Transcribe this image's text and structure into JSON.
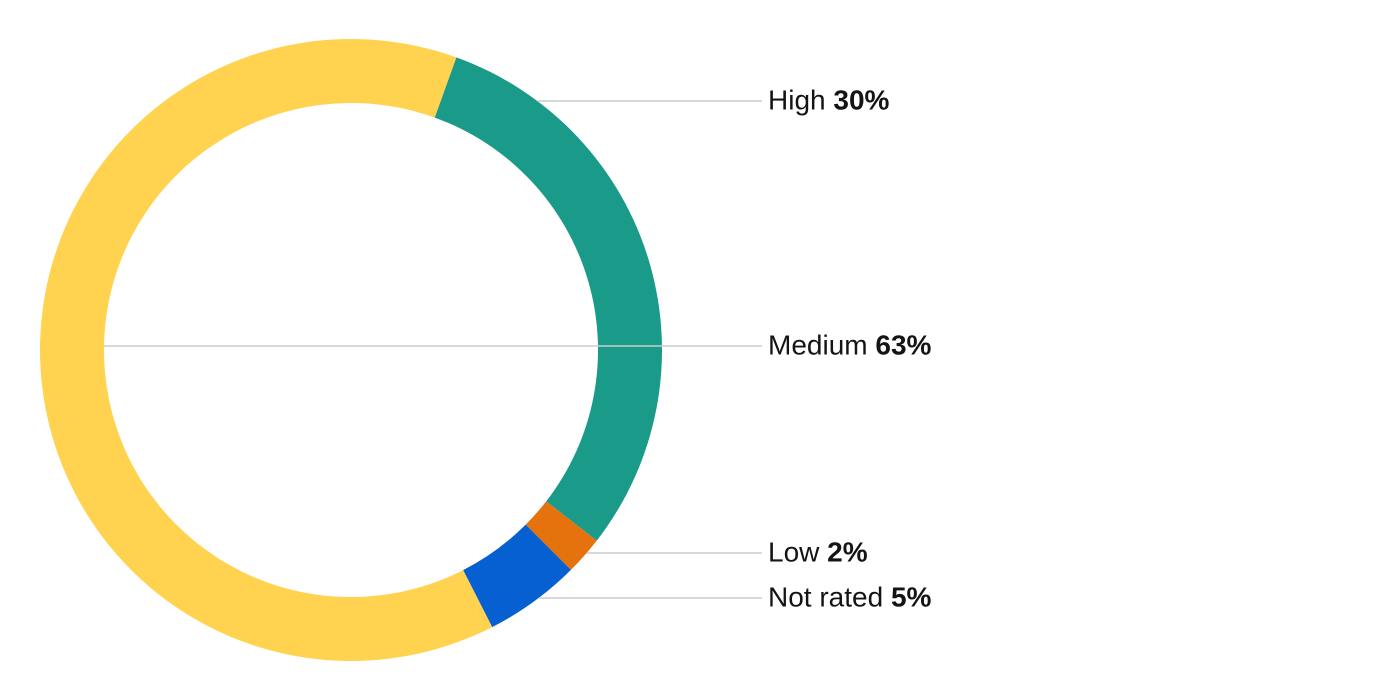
{
  "background_color": "#ffffff",
  "chart_data": {
    "type": "pie",
    "variant": "donut",
    "title": "",
    "units": "%",
    "direction": "clockwise",
    "start_angle_deg": 19.8,
    "legend_position": "right outside labels with leader lines",
    "grid": false,
    "segments": [
      {
        "label": "High",
        "value": 30,
        "percent_label": "30%",
        "color": "#1A9B89"
      },
      {
        "label": "Low",
        "value": 2,
        "percent_label": "2%",
        "color": "#E6720D"
      },
      {
        "label": "Not rated",
        "value": 5,
        "percent_label": "5%",
        "color": "#0660D2"
      },
      {
        "label": "Medium",
        "value": 63,
        "percent_label": "63%",
        "color": "#FFD34F"
      }
    ],
    "label_text_color": "#141414",
    "leader_line_color": "#CCCCCC",
    "hole_color": "#FFFFFF"
  }
}
